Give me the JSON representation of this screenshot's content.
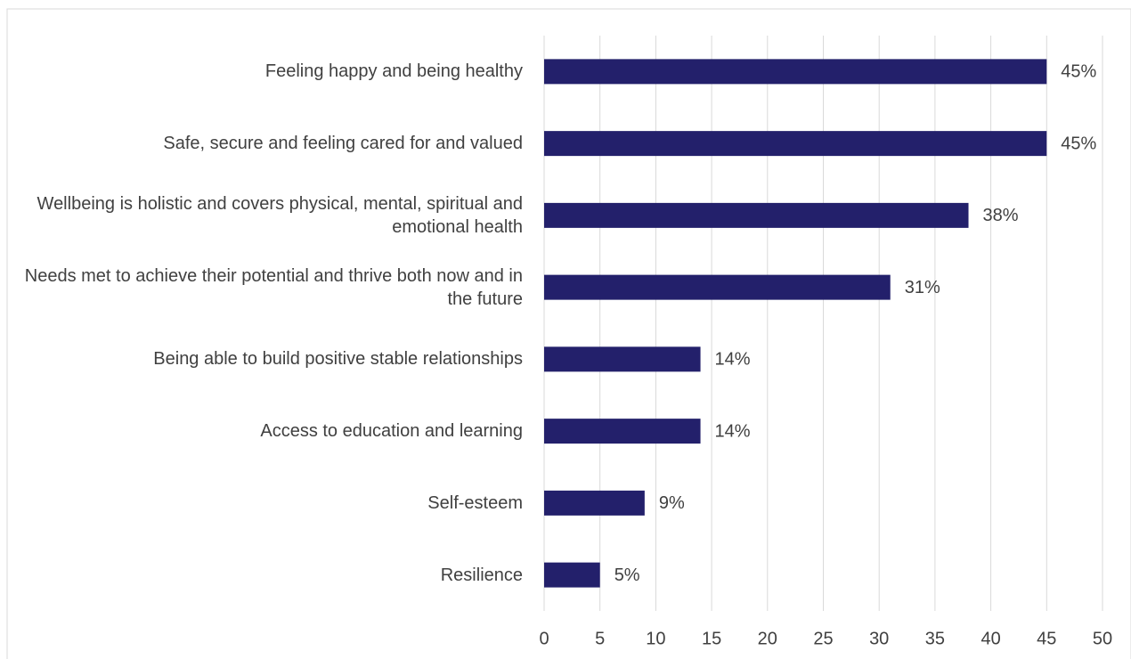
{
  "chart_data": {
    "type": "bar",
    "orientation": "horizontal",
    "categories": [
      "Feeling happy and being healthy",
      "Safe, secure and feeling cared for and valued",
      "Wellbeing is holistic and covers physical, mental, spiritual and emotional health",
      "Needs met to achieve their potential and thrive both now and in the future",
      "Being able to build positive stable relationships",
      "Access to education and learning",
      "Self-esteem",
      "Resilience"
    ],
    "values": [
      45,
      45,
      38,
      31,
      14,
      14,
      9,
      5
    ],
    "value_labels": [
      "45%",
      "45%",
      "38%",
      "31%",
      "14%",
      "14%",
      "9%",
      "5%"
    ],
    "color": "#23206b",
    "xlim": [
      0,
      50
    ],
    "xticks": [
      0,
      5,
      10,
      15,
      20,
      25,
      30,
      35,
      40,
      45,
      50
    ],
    "grid": true
  }
}
